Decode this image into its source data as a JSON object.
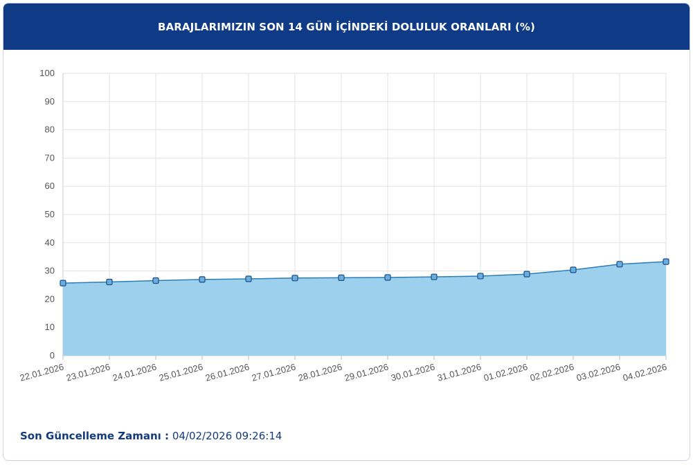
{
  "header": {
    "title": "BARAJLARIMIZIN SON 14 GÜN İÇİNDEKİ DOLULUK ORANLARI (%)"
  },
  "chart_data": {
    "type": "area",
    "categories": [
      "22.01.2026",
      "23.01.2026",
      "24.01.2026",
      "25.01.2026",
      "26.01.2026",
      "27.01.2026",
      "28.01.2026",
      "29.01.2026",
      "30.01.2026",
      "31.01.2026",
      "01.02.2026",
      "02.02.2026",
      "03.02.2026",
      "04.02.2026"
    ],
    "values": [
      25.7,
      26.1,
      26.6,
      27.0,
      27.2,
      27.5,
      27.6,
      27.7,
      27.9,
      28.2,
      28.9,
      30.4,
      32.4,
      33.3
    ],
    "color": "#2b7db6",
    "area_color": "#9dd0ec",
    "marker_color": "#6aaee0",
    "ylim": [
      0,
      100
    ],
    "yticks": [
      0,
      10,
      20,
      30,
      40,
      50,
      60,
      70,
      80,
      90,
      100
    ],
    "grid": true
  },
  "footer": {
    "label": "Son Güncelleme Zamanı :",
    "value": "04/02/2026 09:26:14"
  }
}
